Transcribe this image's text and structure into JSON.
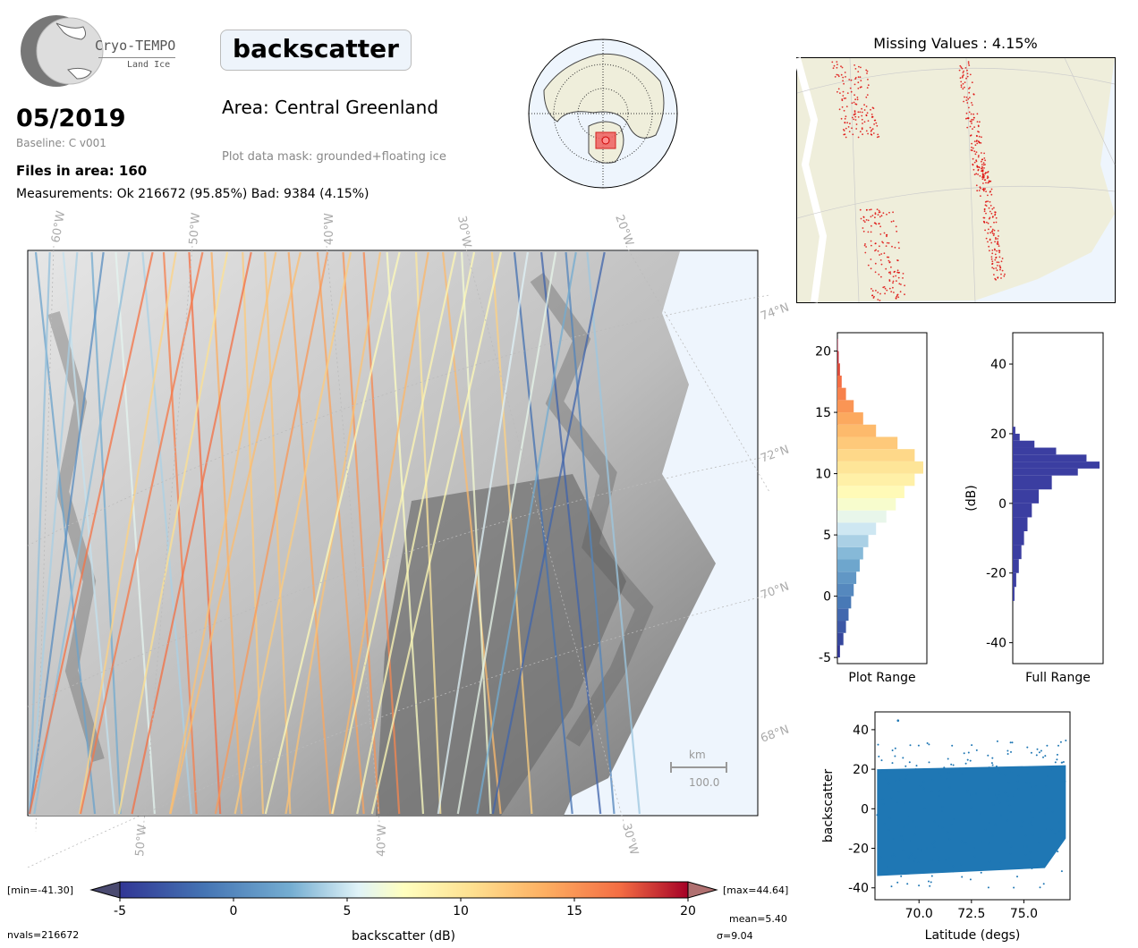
{
  "header": {
    "logo_name": "Cryo-TEMPO",
    "logo_sub": "Land Ice",
    "date": "05/2019",
    "baseline": "Baseline: C v001",
    "files": "Files in area: 160",
    "measurements": "Measurements: Ok 216672 (95.85%) Bad: 9384 (4.15%)",
    "parameter": "backscatter",
    "area": "Area: Central Greenland",
    "mask": "Plot data mask: grounded+floating ice"
  },
  "map": {
    "lon_top": [
      "60°W",
      "50°W",
      "40°W",
      "30°W",
      "20°W"
    ],
    "lon_bottom": [
      "50°W",
      "40°W",
      "30°W"
    ],
    "lat_right": [
      "74°N",
      "72°N",
      "70°N",
      "68°N"
    ],
    "scale_unit": "km",
    "scale_value": "100.0"
  },
  "missing": {
    "title": "Missing Values : 4.15%"
  },
  "colorbar": {
    "min_label": "[min=-41.30]",
    "max_label": "[max=44.64]",
    "ticks": [
      "-5",
      "0",
      "5",
      "10",
      "15",
      "20"
    ],
    "label": "backscatter (dB)",
    "mean": "mean=5.40",
    "sigma": "σ=9.04",
    "nvals": "nvals=216672"
  },
  "colors": {
    "ocean": "#eef5fd",
    "land": "#efeedb",
    "scatter": "#1f77b4",
    "full_hist": "#3b3ea1",
    "missing": "#dd0000"
  },
  "chart_data": [
    {
      "type": "bar",
      "name": "plot-range-histogram",
      "xlabel": "Plot Range",
      "ylim": [
        -5.5,
        21.5
      ],
      "yticks": [
        -5,
        0,
        5,
        10,
        15,
        20
      ],
      "orientation": "horizontal",
      "bins": [
        -5,
        -4,
        -3,
        -2,
        -1,
        0,
        1,
        2,
        3,
        4,
        5,
        6,
        7,
        8,
        9,
        10,
        11,
        12,
        13,
        14,
        15,
        16,
        17,
        18,
        19,
        20
      ],
      "values": [
        0.03,
        0.07,
        0.1,
        0.13,
        0.16,
        0.19,
        0.22,
        0.26,
        0.3,
        0.36,
        0.45,
        0.57,
        0.68,
        0.78,
        0.9,
        1.0,
        0.9,
        0.7,
        0.45,
        0.3,
        0.19,
        0.1,
        0.05,
        0.03,
        0.015,
        0.005
      ]
    },
    {
      "type": "bar",
      "name": "full-range-histogram",
      "xlabel": "Full Range",
      "ylabel": "(dB)",
      "ylim": [
        -46,
        49
      ],
      "yticks": [
        -40,
        -20,
        0,
        20,
        40
      ],
      "orientation": "horizontal",
      "bins": [
        -28,
        -24,
        -20,
        -16,
        -12,
        -8,
        -4,
        0,
        4,
        8,
        10,
        12,
        14,
        16,
        18,
        20
      ],
      "values": [
        0.02,
        0.04,
        0.07,
        0.1,
        0.13,
        0.17,
        0.22,
        0.3,
        0.45,
        0.75,
        1.0,
        0.85,
        0.5,
        0.25,
        0.08,
        0.03
      ]
    },
    {
      "type": "scatter",
      "name": "backscatter-vs-latitude",
      "xlabel": "Latitude (degs)",
      "ylabel": "backscatter",
      "xlim": [
        67.9,
        77.2
      ],
      "ylim": [
        -46,
        49
      ],
      "xticks": [
        "70.0",
        "72.5",
        "75.0"
      ],
      "yticks": [
        -40,
        -20,
        0,
        20,
        40
      ],
      "x_range": [
        68.0,
        77.0
      ],
      "typical_y_range": [
        -35,
        20
      ],
      "max_y": 44.6
    }
  ]
}
